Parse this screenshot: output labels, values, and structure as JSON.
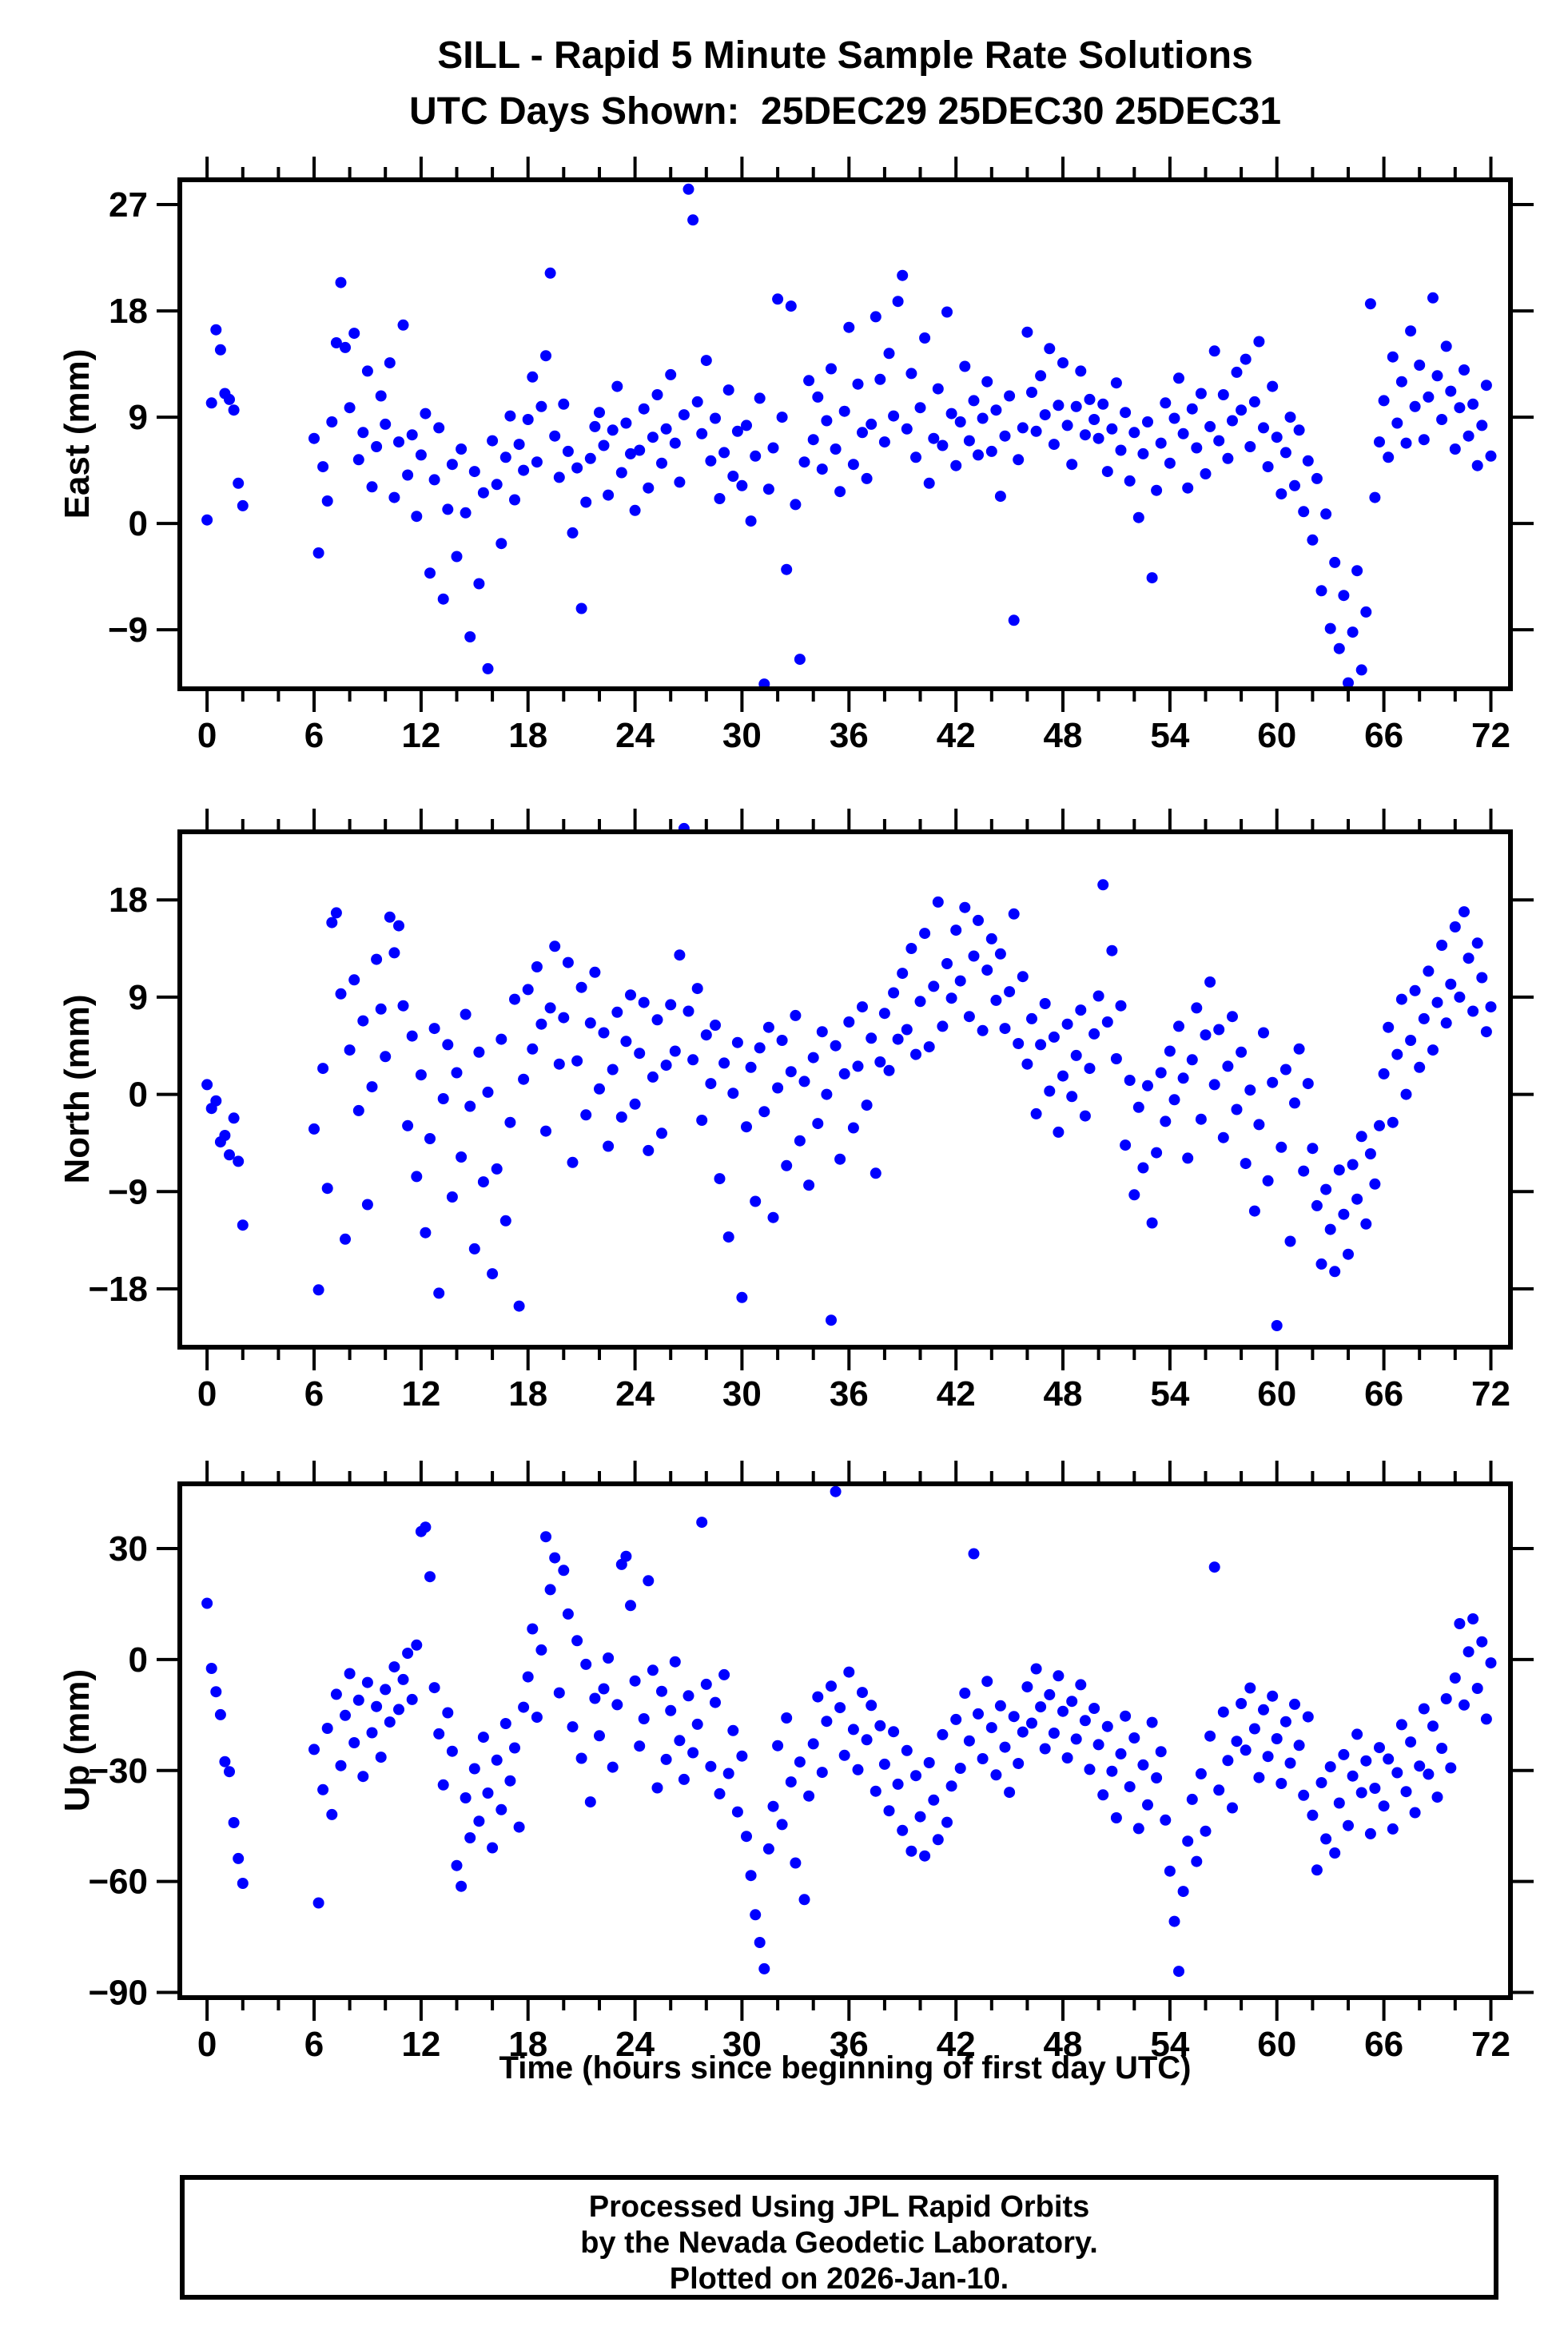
{
  "style": {
    "dot_color": "#0000ff",
    "frame_color": "#000000",
    "text_color": "#000000",
    "background": "#ffffff"
  },
  "footer": {
    "line1": "Processed Using JPL Rapid Orbits",
    "line2": "by the Nevada Geodetic Laboratory.",
    "line3": "Plotted on 2026-Jan-10."
  },
  "chart_data": {
    "type": "scatter",
    "title": "SILL - Rapid 5 Minute Sample Rate Solutions",
    "subtitle": "UTC Days Shown:  25DEC29 25DEC30 25DEC31",
    "xlabel": "Time (hours since beginning of first day UTC)",
    "legend": "none",
    "grid": false,
    "xlim": [
      -1.53,
      73.1
    ],
    "xticks": [
      0,
      6,
      12,
      18,
      24,
      30,
      36,
      42,
      48,
      54,
      60,
      66,
      72
    ],
    "xtick_labels": [
      "0",
      "6",
      "12",
      "18",
      "24",
      "30",
      "36",
      "42",
      "48",
      "54",
      "60",
      "66",
      "72"
    ],
    "x_minor_step": 2,
    "x_hours_segments": [
      {
        "start": 0,
        "end": 2,
        "step": 0.25
      },
      {
        "start": 6,
        "end": 72,
        "step": 0.25
      }
    ],
    "panels": [
      {
        "name": "east",
        "ylabel": "East (mm)",
        "ylim": [
          -14.0,
          29.1
        ],
        "yticks": [
          27,
          18,
          9,
          0,
          -9
        ],
        "ytick_labels": [
          "27",
          "18",
          "9",
          "0",
          "−9"
        ],
        "y": [
          0.3,
          10.2,
          16.4,
          14.7,
          11.0,
          10.5,
          9.6,
          3.4,
          1.5,
          7.2,
          -2.5,
          4.8,
          1.9,
          8.6,
          15.3,
          20.4,
          14.9,
          9.8,
          16.1,
          5.4,
          7.7,
          12.9,
          3.1,
          6.5,
          10.8,
          8.4,
          13.6,
          2.2,
          6.9,
          16.8,
          4.1,
          7.5,
          0.6,
          5.8,
          9.3,
          -4.2,
          3.7,
          8.1,
          -6.4,
          1.2,
          5.0,
          -2.8,
          6.3,
          0.9,
          -9.6,
          4.4,
          -5.1,
          2.6,
          -12.3,
          7.0,
          3.3,
          -1.7,
          5.6,
          9.1,
          2.0,
          6.7,
          4.5,
          8.8,
          12.4,
          5.2,
          9.9,
          14.2,
          21.2,
          7.4,
          3.9,
          10.1,
          6.1,
          -0.8,
          4.7,
          -7.2,
          1.8,
          5.5,
          8.2,
          9.4,
          6.6,
          2.4,
          7.9,
          11.6,
          4.3,
          8.5,
          5.9,
          1.1,
          6.2,
          9.7,
          3.0,
          7.3,
          10.9,
          5.1,
          8.0,
          12.6,
          6.8,
          3.5,
          9.2,
          28.3,
          25.7,
          10.3,
          7.6,
          13.8,
          5.3,
          8.9,
          2.1,
          6.0,
          11.3,
          4.0,
          7.8,
          3.2,
          8.3,
          0.2,
          5.7,
          10.6,
          -13.6,
          2.9,
          6.4,
          19.0,
          9.0,
          -3.9,
          18.4,
          1.6,
          -11.5,
          5.2,
          12.1,
          7.1,
          10.7,
          4.6,
          8.7,
          13.1,
          6.3,
          2.7,
          9.5,
          16.6,
          5.0,
          11.8,
          7.7,
          3.8,
          8.4,
          17.5,
          12.2,
          6.9,
          14.4,
          9.1,
          18.8,
          21.0,
          8.0,
          12.7,
          5.6,
          9.8,
          15.7,
          3.4,
          7.2,
          11.4,
          6.6,
          17.9,
          9.3,
          4.9,
          8.6,
          13.3,
          7.0,
          10.4,
          5.8,
          8.9,
          12.0,
          6.1,
          9.6,
          2.3,
          7.4,
          10.8,
          -8.2,
          5.4,
          8.1,
          16.2,
          11.1,
          7.8,
          12.5,
          9.2,
          14.8,
          6.7,
          10.0,
          13.6,
          8.3,
          5.0,
          9.9,
          12.9,
          7.5,
          10.5,
          8.8,
          7.2,
          10.1,
          4.4,
          8.0,
          11.9,
          6.2,
          9.4,
          3.6,
          7.7,
          0.5,
          5.9,
          8.6,
          -4.6,
          2.8,
          6.8,
          10.2,
          5.1,
          8.9,
          12.3,
          7.6,
          3.0,
          9.7,
          6.4,
          11.0,
          4.2,
          8.2,
          14.6,
          7.0,
          10.9,
          5.5,
          8.7,
          12.8,
          9.6,
          13.9,
          6.5,
          10.3,
          15.4,
          8.1,
          4.8,
          11.6,
          7.3,
          2.5,
          6.0,
          9.0,
          3.2,
          7.9,
          1.0,
          5.3,
          -1.4,
          3.8,
          -5.7,
          0.8,
          -8.9,
          -3.3,
          -10.6,
          -6.1,
          -13.5,
          -9.2,
          -4.0,
          -12.4,
          -7.5,
          18.6,
          2.2,
          6.9,
          10.4,
          5.6,
          14.1,
          8.5,
          12.0,
          6.8,
          16.3,
          9.9,
          13.4,
          7.1,
          10.7,
          19.1,
          12.5,
          8.8,
          15.0,
          11.2,
          6.3,
          9.8,
          13.0,
          7.4,
          10.1,
          4.9,
          8.3,
          11.7,
          5.7
        ]
      },
      {
        "name": "north",
        "ylabel": "North (mm)",
        "ylim": [
          -23.4,
          24.3
        ],
        "yticks": [
          18,
          9,
          0,
          -9,
          -18
        ],
        "ytick_labels": [
          "18",
          "9",
          "0",
          "−9",
          "−18"
        ],
        "y": [
          0.9,
          -1.3,
          -0.6,
          -4.4,
          -3.8,
          -5.6,
          -2.2,
          -6.2,
          -12.1,
          -3.2,
          -18.1,
          2.4,
          -8.7,
          15.9,
          16.8,
          9.3,
          -13.4,
          4.1,
          10.6,
          -1.5,
          6.8,
          -10.2,
          0.7,
          12.5,
          7.9,
          3.5,
          16.4,
          13.1,
          15.6,
          8.2,
          -2.9,
          5.4,
          -7.6,
          1.8,
          -12.8,
          -4.1,
          6.1,
          -18.4,
          -0.4,
          4.6,
          -9.5,
          2.0,
          -5.8,
          7.4,
          -1.1,
          -14.3,
          3.9,
          -8.1,
          0.2,
          -16.6,
          -6.9,
          5.1,
          -11.7,
          -2.6,
          8.8,
          -19.6,
          1.4,
          9.7,
          4.2,
          11.8,
          6.5,
          -3.4,
          8.0,
          13.7,
          2.8,
          7.1,
          12.2,
          -6.3,
          3.1,
          9.9,
          -1.9,
          6.6,
          11.3,
          0.5,
          5.7,
          -4.8,
          2.3,
          7.6,
          -2.1,
          4.9,
          9.2,
          -0.9,
          3.8,
          8.5,
          -5.2,
          1.6,
          6.9,
          -3.6,
          2.7,
          8.3,
          4.0,
          12.9,
          24.6,
          7.7,
          3.2,
          9.8,
          -2.4,
          5.5,
          1.0,
          6.4,
          -7.8,
          2.9,
          -13.2,
          0.1,
          4.8,
          -18.8,
          -3.0,
          2.5,
          -9.9,
          4.3,
          -1.6,
          6.2,
          -11.4,
          0.6,
          5.0,
          -6.6,
          2.1,
          7.3,
          -4.3,
          1.2,
          -8.4,
          3.4,
          -2.7,
          5.8,
          0.0,
          -20.9,
          4.5,
          -6.0,
          1.9,
          6.7,
          -3.1,
          2.6,
          8.1,
          -1.0,
          5.2,
          -7.3,
          3.0,
          7.5,
          2.2,
          9.4,
          5.1,
          11.2,
          6.0,
          13.5,
          3.7,
          8.6,
          14.9,
          4.4,
          10.0,
          17.8,
          6.3,
          12.1,
          8.9,
          15.2,
          10.5,
          17.3,
          7.2,
          12.8,
          16.1,
          5.9,
          11.5,
          14.4,
          8.7,
          13.0,
          6.1,
          9.5,
          16.7,
          4.7,
          10.9,
          2.8,
          7.0,
          -1.8,
          4.6,
          8.4,
          0.3,
          5.3,
          -3.5,
          1.7,
          6.5,
          -0.2,
          3.6,
          7.8,
          -2.0,
          2.4,
          5.6,
          9.1,
          19.4,
          6.7,
          13.3,
          3.3,
          8.2,
          -4.7,
          1.3,
          -9.3,
          -1.2,
          -6.8,
          0.8,
          -11.9,
          -5.4,
          2.0,
          -2.5,
          4.0,
          -0.5,
          6.3,
          1.5,
          -5.9,
          3.2,
          8.0,
          -2.3,
          5.5,
          10.4,
          0.9,
          6.0,
          -4.0,
          2.6,
          7.2,
          -1.4,
          3.9,
          -6.4,
          0.4,
          -10.8,
          -2.8,
          5.7,
          -8.0,
          1.1,
          -21.4,
          -4.9,
          2.3,
          -13.6,
          -0.8,
          4.2,
          -7.1,
          1.0,
          -5.0,
          -10.3,
          -15.7,
          -8.8,
          -12.5,
          -16.4,
          -7.0,
          -11.1,
          -14.8,
          -6.5,
          -9.7,
          -3.9,
          -12.0,
          -5.5,
          -8.3,
          -2.9,
          1.9,
          6.2,
          -2.6,
          3.7,
          8.8,
          0.0,
          5.0,
          9.6,
          2.5,
          7.0,
          11.4,
          4.1,
          8.5,
          13.8,
          6.6,
          10.2,
          15.5,
          9.0,
          16.9,
          12.6,
          7.7,
          14.0,
          10.8,
          5.8,
          8.1
        ]
      },
      {
        "name": "up",
        "ylabel": "Up (mm)",
        "ylim": [
          -91.4,
          47.5
        ],
        "yticks": [
          30,
          0,
          -30,
          -60,
          -90
        ],
        "ytick_labels": [
          "30",
          "0",
          "−30",
          "−60",
          "−90"
        ],
        "y": [
          15.2,
          -2.4,
          -8.7,
          -14.9,
          -27.6,
          -30.3,
          -44.1,
          -53.8,
          -60.5,
          -24.3,
          -65.8,
          -35.2,
          -18.6,
          -41.9,
          -9.4,
          -28.7,
          -15.1,
          -3.8,
          -22.5,
          -11.0,
          -31.6,
          -6.2,
          -19.8,
          -12.7,
          -26.4,
          -8.1,
          -16.9,
          -2.0,
          -13.5,
          -5.4,
          1.7,
          -10.8,
          3.9,
          34.6,
          35.8,
          22.4,
          -7.6,
          -20.1,
          -33.9,
          -14.4,
          -24.8,
          -55.7,
          -61.3,
          -37.4,
          -48.2,
          -29.5,
          -43.7,
          -21.0,
          -36.1,
          -50.9,
          -27.2,
          -40.6,
          -17.3,
          -32.8,
          -23.9,
          -45.3,
          -12.9,
          -4.7,
          8.3,
          -15.6,
          2.6,
          33.2,
          18.9,
          27.5,
          -9.0,
          24.1,
          12.3,
          -18.2,
          5.1,
          -26.7,
          -1.3,
          -38.5,
          -10.5,
          -20.6,
          -7.9,
          0.4,
          -29.1,
          -12.2,
          25.7,
          27.9,
          14.6,
          -5.8,
          -23.4,
          -16.0,
          21.3,
          -2.9,
          -34.7,
          -8.6,
          -27.0,
          -13.8,
          -0.6,
          -21.9,
          -32.4,
          -9.8,
          -25.2,
          -17.5,
          37.1,
          -6.7,
          -28.9,
          -11.6,
          -36.3,
          -4.1,
          -30.8,
          -19.2,
          -41.2,
          -26.1,
          -47.8,
          -58.4,
          -69.0,
          -76.5,
          -83.6,
          -51.2,
          -39.7,
          -23.3,
          -44.6,
          -15.8,
          -33.1,
          -55.0,
          -27.7,
          -64.9,
          -36.9,
          -22.8,
          -10.1,
          -30.5,
          -16.7,
          -7.2,
          45.4,
          -13.0,
          -25.9,
          -3.4,
          -18.9,
          -29.8,
          -8.9,
          -21.7,
          -12.4,
          -35.6,
          -17.9,
          -28.3,
          -40.9,
          -19.5,
          -33.7,
          -46.2,
          -24.6,
          -51.8,
          -31.4,
          -42.5,
          -53.1,
          -27.9,
          -38.0,
          -48.7,
          -20.3,
          -44.0,
          -34.2,
          -16.2,
          -29.4,
          -9.1,
          -22.0,
          28.6,
          -14.7,
          -26.8,
          -5.9,
          -18.4,
          -31.2,
          -12.5,
          -23.7,
          -35.9,
          -15.4,
          -28.1,
          -19.6,
          -7.4,
          -17.2,
          -2.5,
          -12.8,
          -24.1,
          -9.5,
          -19.9,
          -4.4,
          -14.0,
          -26.6,
          -11.3,
          -21.5,
          -6.8,
          -16.5,
          -29.7,
          -13.2,
          -23.0,
          -36.6,
          -18.1,
          -30.2,
          -42.8,
          -25.5,
          -15.3,
          -34.4,
          -21.2,
          -45.7,
          -28.5,
          -39.3,
          -17.0,
          -32.0,
          -24.9,
          -43.4,
          -57.2,
          -70.8,
          -84.3,
          -62.7,
          -49.1,
          -37.8,
          -54.6,
          -30.9,
          -46.4,
          -20.7,
          25.0,
          -35.3,
          -14.2,
          -27.3,
          -40.1,
          -22.1,
          -11.9,
          -24.5,
          -7.7,
          -18.7,
          -31.9,
          -13.6,
          -26.2,
          -9.9,
          -21.4,
          -33.5,
          -16.8,
          -28.0,
          -12.1,
          -23.2,
          -36.7,
          -15.5,
          -42.1,
          -56.9,
          -33.3,
          -48.5,
          -29.0,
          -52.3,
          -38.8,
          -25.7,
          -44.9,
          -31.5,
          -20.2,
          -36.0,
          -27.4,
          -47.1,
          -34.8,
          -23.8,
          -39.6,
          -26.9,
          -45.8,
          -30.6,
          -17.6,
          -35.7,
          -22.3,
          -41.4,
          -28.8,
          -13.3,
          -31.0,
          -18.0,
          -37.2,
          -24.0,
          -10.6,
          -29.3,
          -5.0,
          9.7,
          -12.3,
          2.1,
          11.0,
          -7.8,
          4.8,
          -16.1,
          -0.9
        ]
      }
    ]
  }
}
